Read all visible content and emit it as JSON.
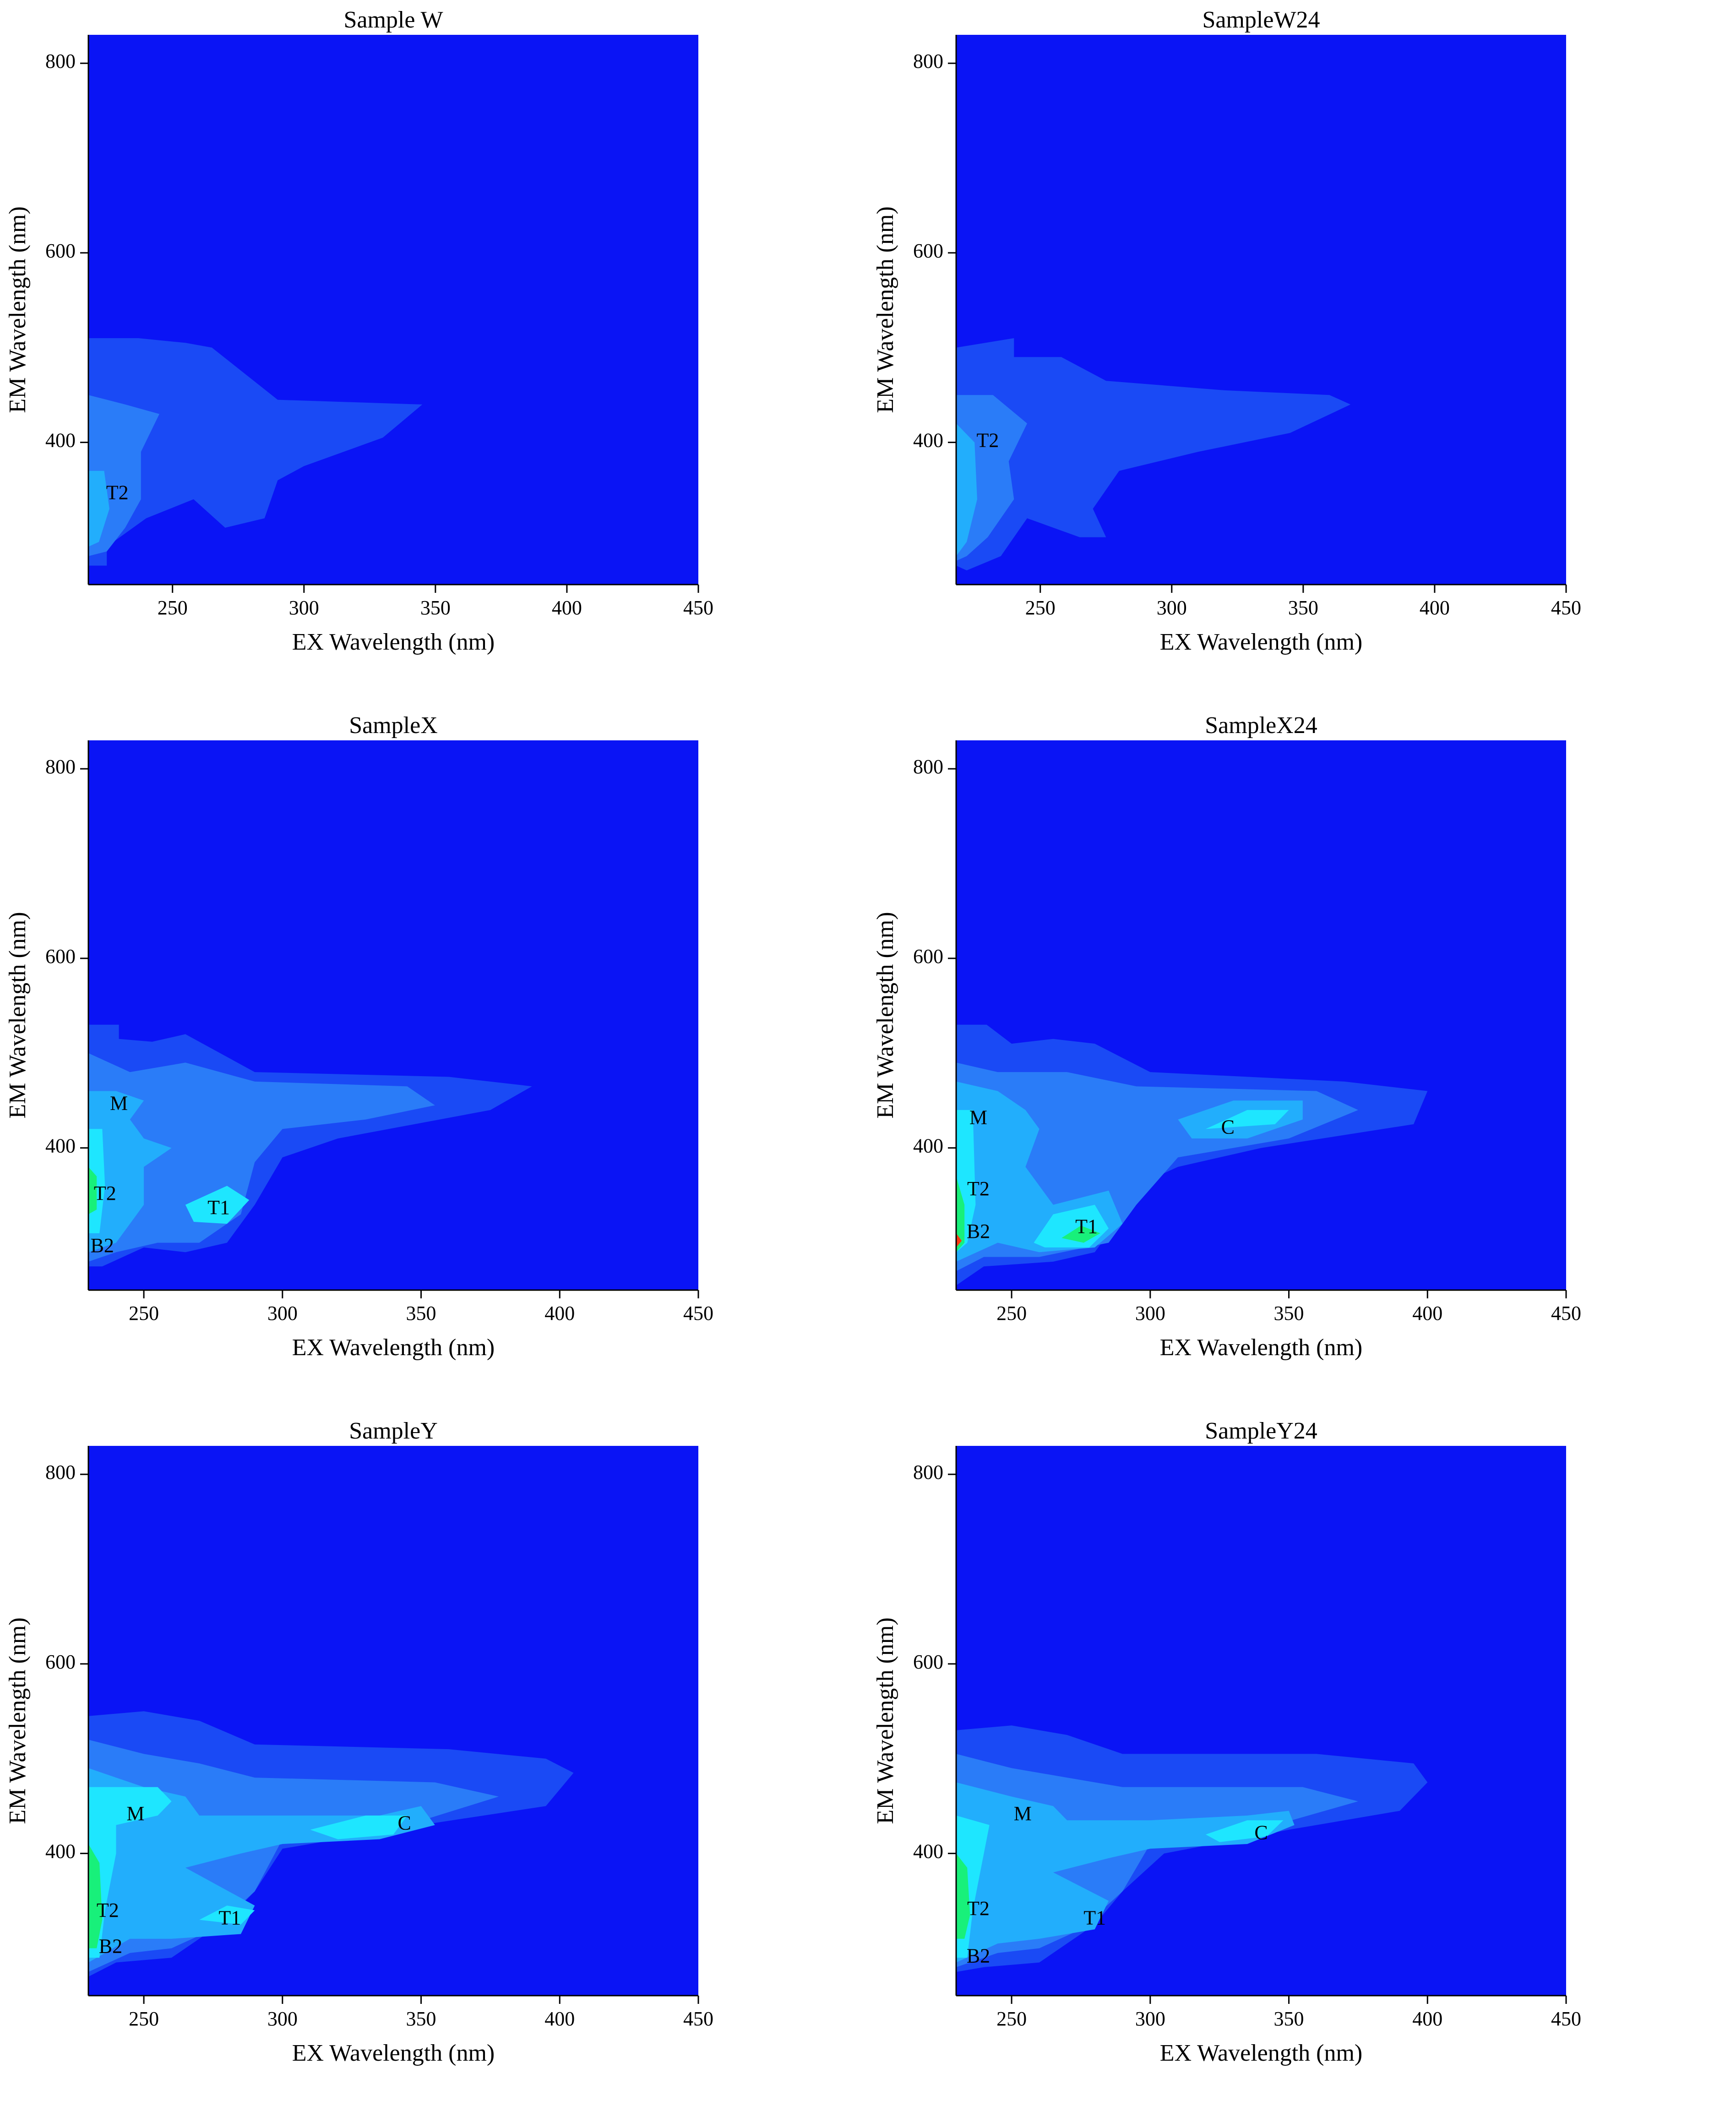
{
  "chart_data": [
    {
      "type": "contour",
      "title": "Sample W",
      "x_label": "EX Wavelength (nm)",
      "y_label": "EM Wavelength (nm)",
      "xlim": [
        218,
        450
      ],
      "ylim": [
        250,
        830
      ],
      "xticks": [
        250,
        300,
        350,
        400,
        450
      ],
      "yticks": [
        400,
        600,
        800
      ],
      "background_color": "#0a14f5",
      "contours": [
        {
          "color": "#1a4af5",
          "x": [
            218,
            218,
            237,
            255,
            265,
            290,
            345,
            330,
            300,
            290,
            285,
            270,
            258,
            240,
            225,
            225
          ],
          "y": [
            270,
            510,
            510,
            505,
            500,
            445,
            440,
            405,
            375,
            360,
            320,
            310,
            340,
            320,
            290,
            270
          ]
        },
        {
          "color": "#2a7cf8",
          "x": [
            218,
            218,
            232,
            245,
            238,
            238,
            232,
            225
          ],
          "y": [
            280,
            450,
            440,
            430,
            390,
            340,
            310,
            285
          ]
        },
        {
          "color": "#22aefc",
          "x": [
            218,
            218,
            224,
            226,
            222
          ],
          "y": [
            290,
            370,
            370,
            330,
            295
          ]
        }
      ],
      "annotations": [
        {
          "text": "T2",
          "x": 229,
          "y": 345
        }
      ]
    },
    {
      "type": "contour",
      "title": "SampleW24",
      "x_label": "EX Wavelength (nm)",
      "y_label": "EM Wavelength (nm)",
      "xlim": [
        218,
        450
      ],
      "ylim": [
        250,
        830
      ],
      "xticks": [
        250,
        300,
        350,
        400,
        450
      ],
      "yticks": [
        400,
        600,
        800
      ],
      "background_color": "#0a14f5",
      "contours": [
        {
          "color": "#1a4af5",
          "x": [
            218,
            218,
            240,
            240,
            258,
            275,
            320,
            360,
            368,
            345,
            310,
            280,
            270,
            275,
            265,
            245,
            235,
            222
          ],
          "y": [
            270,
            500,
            510,
            490,
            490,
            465,
            455,
            450,
            440,
            410,
            390,
            370,
            330,
            300,
            300,
            320,
            280,
            265
          ]
        },
        {
          "color": "#2a7cf8",
          "x": [
            218,
            218,
            232,
            245,
            238,
            240,
            230,
            222
          ],
          "y": [
            275,
            450,
            450,
            420,
            380,
            340,
            300,
            280
          ]
        },
        {
          "color": "#22aefc",
          "x": [
            218,
            218,
            225,
            226,
            222
          ],
          "y": [
            280,
            420,
            400,
            340,
            295
          ]
        }
      ],
      "annotations": [
        {
          "text": "T2",
          "x": 230,
          "y": 400
        }
      ]
    },
    {
      "type": "contour",
      "title": "SampleX",
      "x_label": "EX Wavelength (nm)",
      "y_label": "EM Wavelength (nm)",
      "xlim": [
        230,
        450
      ],
      "ylim": [
        250,
        830
      ],
      "xticks": [
        250,
        300,
        350,
        400,
        450
      ],
      "yticks": [
        400,
        600,
        800
      ],
      "background_color": "#0a14f5",
      "contours": [
        {
          "color": "#1a4af5",
          "x": [
            230,
            230,
            241,
            241,
            253,
            265,
            290,
            360,
            390,
            375,
            320,
            300,
            290,
            280,
            265,
            250,
            235
          ],
          "y": [
            275,
            530,
            530,
            515,
            512,
            520,
            480,
            475,
            465,
            440,
            410,
            390,
            340,
            300,
            290,
            295,
            275
          ]
        },
        {
          "color": "#2a7cf8",
          "x": [
            230,
            230,
            245,
            265,
            290,
            345,
            355,
            330,
            300,
            290,
            285,
            270,
            255,
            240
          ],
          "y": [
            280,
            500,
            480,
            490,
            470,
            465,
            445,
            430,
            420,
            385,
            330,
            300,
            300,
            290
          ]
        },
        {
          "color": "#22aefc",
          "x": [
            230,
            230,
            240,
            250,
            245,
            250,
            260,
            250,
            250,
            240
          ],
          "y": [
            290,
            460,
            460,
            450,
            430,
            410,
            400,
            380,
            340,
            300
          ]
        },
        {
          "color": "#1ee6ff",
          "x": [
            230,
            230,
            235,
            236,
            234
          ],
          "y": [
            310,
            420,
            420,
            360,
            310
          ]
        },
        {
          "color": "#1ee6ff",
          "x": [
            265,
            280,
            288,
            280,
            268
          ],
          "y": [
            340,
            360,
            345,
            320,
            322
          ]
        },
        {
          "color": "#18f07a",
          "x": [
            230,
            230,
            233,
            233
          ],
          "y": [
            330,
            380,
            370,
            335
          ]
        }
      ],
      "annotations": [
        {
          "text": "M",
          "x": 241,
          "y": 445
        },
        {
          "text": "T2",
          "x": 236,
          "y": 350
        },
        {
          "text": "T1",
          "x": 277,
          "y": 335
        },
        {
          "text": "B2",
          "x": 235,
          "y": 295
        }
      ]
    },
    {
      "type": "contour",
      "title": "SampleX24",
      "x_label": "EX Wavelength (nm)",
      "y_label": "EM Wavelength (nm)",
      "xlim": [
        230,
        450
      ],
      "ylim": [
        250,
        830
      ],
      "xticks": [
        250,
        300,
        350,
        400,
        450
      ],
      "yticks": [
        400,
        600,
        800
      ],
      "background_color": "#0a14f5",
      "contours": [
        {
          "color": "#1a4af5",
          "x": [
            230,
            230,
            241,
            250,
            265,
            280,
            300,
            370,
            400,
            395,
            340,
            310,
            295,
            290,
            280,
            265,
            240
          ],
          "y": [
            255,
            530,
            530,
            510,
            515,
            510,
            480,
            470,
            460,
            425,
            400,
            380,
            360,
            330,
            290,
            280,
            275
          ]
        },
        {
          "color": "#2a7cf8",
          "x": [
            230,
            230,
            245,
            270,
            295,
            360,
            375,
            350,
            310,
            295,
            285,
            260,
            240
          ],
          "y": [
            270,
            490,
            480,
            480,
            465,
            460,
            440,
            410,
            390,
            340,
            300,
            285,
            285
          ]
        },
        {
          "color": "#22aefc",
          "x": [
            230,
            230,
            245,
            255,
            260,
            255,
            265,
            285,
            290,
            280,
            260,
            245
          ],
          "y": [
            280,
            470,
            460,
            440,
            420,
            380,
            340,
            355,
            320,
            295,
            290,
            300
          ]
        },
        {
          "color": "#22aefc",
          "x": [
            310,
            330,
            355,
            355,
            335,
            315
          ],
          "y": [
            430,
            450,
            450,
            430,
            410,
            410
          ]
        },
        {
          "color": "#1ee6ff",
          "x": [
            230,
            230,
            236,
            237,
            234
          ],
          "y": [
            290,
            440,
            440,
            340,
            300
          ]
        },
        {
          "color": "#1ee6ff",
          "x": [
            258,
            265,
            280,
            285,
            278,
            262
          ],
          "y": [
            300,
            330,
            340,
            315,
            295,
            295
          ]
        },
        {
          "color": "#1ee6ff",
          "x": [
            320,
            335,
            350,
            345
          ],
          "y": [
            420,
            440,
            440,
            425
          ]
        },
        {
          "color": "#18f07a",
          "x": [
            230,
            230,
            233,
            233
          ],
          "y": [
            290,
            370,
            340,
            300
          ]
        },
        {
          "color": "#18f07a",
          "x": [
            268,
            275,
            282,
            276
          ],
          "y": [
            305,
            318,
            310,
            300
          ]
        },
        {
          "color": "#ff3a10",
          "x": [
            230,
            230,
            232
          ],
          "y": [
            295,
            310,
            302
          ]
        }
      ],
      "annotations": [
        {
          "text": "M",
          "x": 238,
          "y": 430
        },
        {
          "text": "T2",
          "x": 238,
          "y": 355
        },
        {
          "text": "B2",
          "x": 238,
          "y": 310
        },
        {
          "text": "T1",
          "x": 277,
          "y": 315
        },
        {
          "text": "C",
          "x": 328,
          "y": 420
        }
      ]
    },
    {
      "type": "contour",
      "title": "SampleY",
      "x_label": "EX Wavelength (nm)",
      "y_label": "EM Wavelength (nm)",
      "xlim": [
        230,
        450
      ],
      "ylim": [
        250,
        830
      ],
      "xticks": [
        250,
        300,
        350,
        400,
        450
      ],
      "yticks": [
        400,
        600,
        800
      ],
      "background_color": "#0a14f5",
      "contours": [
        {
          "color": "#1a4af5",
          "x": [
            230,
            230,
            250,
            270,
            290,
            360,
            395,
            405,
            395,
            350,
            300,
            290,
            280,
            260,
            240
          ],
          "y": [
            270,
            545,
            550,
            540,
            515,
            510,
            500,
            485,
            450,
            430,
            405,
            360,
            330,
            290,
            285
          ]
        },
        {
          "color": "#2a7cf8",
          "x": [
            230,
            230,
            250,
            270,
            290,
            355,
            378,
            345,
            300,
            290,
            275,
            260,
            245
          ],
          "y": [
            275,
            520,
            505,
            495,
            480,
            475,
            460,
            430,
            415,
            360,
            320,
            300,
            295
          ]
        },
        {
          "color": "#22aefc",
          "x": [
            230,
            230,
            250,
            265,
            270,
            300,
            335,
            350,
            355,
            335,
            300,
            285,
            265,
            290,
            285,
            260,
            245
          ],
          "y": [
            285,
            490,
            470,
            460,
            440,
            440,
            440,
            450,
            430,
            415,
            410,
            400,
            385,
            345,
            315,
            310,
            310
          ]
        },
        {
          "color": "#1ee6ff",
          "x": [
            230,
            230,
            255,
            260,
            255,
            240,
            240,
            236,
            234
          ],
          "y": [
            290,
            470,
            470,
            455,
            440,
            430,
            400,
            340,
            290
          ]
        },
        {
          "color": "#1ee6ff",
          "x": [
            310,
            330,
            345,
            340,
            320
          ],
          "y": [
            425,
            440,
            440,
            420,
            415
          ]
        },
        {
          "color": "#1ee6ff",
          "x": [
            270,
            280,
            290,
            285
          ],
          "y": [
            330,
            345,
            340,
            325
          ]
        },
        {
          "color": "#18f07a",
          "x": [
            230,
            230,
            234,
            235,
            233
          ],
          "y": [
            300,
            410,
            390,
            330,
            300
          ]
        }
      ],
      "annotations": [
        {
          "text": "M",
          "x": 247,
          "y": 440
        },
        {
          "text": "T2",
          "x": 237,
          "y": 338
        },
        {
          "text": "B2",
          "x": 238,
          "y": 300
        },
        {
          "text": "T1",
          "x": 281,
          "y": 330
        },
        {
          "text": "C",
          "x": 344,
          "y": 430
        }
      ]
    },
    {
      "type": "contour",
      "title": "SampleY24",
      "x_label": "EX Wavelength (nm)",
      "y_label": "EM Wavelength (nm)",
      "xlim": [
        230,
        450
      ],
      "ylim": [
        250,
        830
      ],
      "xticks": [
        250,
        300,
        350,
        400,
        450
      ],
      "yticks": [
        400,
        600,
        800
      ],
      "background_color": "#0a14f5",
      "contours": [
        {
          "color": "#1a4af5",
          "x": [
            230,
            230,
            250,
            270,
            290,
            360,
            395,
            400,
            390,
            350,
            305,
            290,
            280,
            260,
            240
          ],
          "y": [
            275,
            530,
            535,
            525,
            505,
            505,
            495,
            475,
            445,
            425,
            400,
            360,
            325,
            285,
            280
          ]
        },
        {
          "color": "#2a7cf8",
          "x": [
            230,
            230,
            250,
            270,
            290,
            355,
            375,
            345,
            300,
            290,
            275,
            260,
            245
          ],
          "y": [
            280,
            505,
            490,
            480,
            470,
            470,
            455,
            430,
            410,
            360,
            320,
            300,
            295
          ]
        },
        {
          "color": "#22aefc",
          "x": [
            230,
            230,
            250,
            265,
            270,
            300,
            335,
            350,
            352,
            335,
            300,
            285,
            265,
            285,
            280,
            260,
            245
          ],
          "y": [
            285,
            475,
            460,
            450,
            435,
            435,
            440,
            445,
            430,
            410,
            405,
            395,
            380,
            350,
            320,
            310,
            305
          ]
        },
        {
          "color": "#1ee6ff",
          "x": [
            230,
            230,
            242,
            240,
            236,
            234
          ],
          "y": [
            290,
            440,
            430,
            400,
            340,
            290
          ]
        },
        {
          "color": "#1ee6ff",
          "x": [
            320,
            335,
            348,
            342,
            325
          ],
          "y": [
            420,
            435,
            435,
            418,
            412
          ]
        },
        {
          "color": "#18f07a",
          "x": [
            230,
            230,
            234,
            235,
            233
          ],
          "y": [
            310,
            400,
            385,
            335,
            310
          ]
        }
      ],
      "annotations": [
        {
          "text": "M",
          "x": 254,
          "y": 440
        },
        {
          "text": "T2",
          "x": 238,
          "y": 340
        },
        {
          "text": "B2",
          "x": 238,
          "y": 290
        },
        {
          "text": "T1",
          "x": 280,
          "y": 330
        },
        {
          "text": "C",
          "x": 340,
          "y": 420
        }
      ]
    }
  ]
}
